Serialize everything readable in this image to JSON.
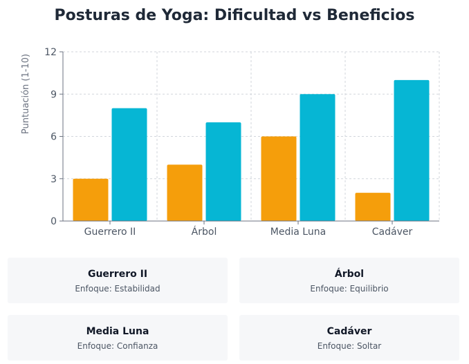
{
  "chart_data": {
    "type": "bar",
    "title": "Posturas de Yoga: Dificultad vs Beneficios",
    "ylabel": "Puntuación (1-10)",
    "xlabel": "",
    "categories": [
      "Guerrero II",
      "Árbol",
      "Media Luna",
      "Cadáver"
    ],
    "series": [
      {
        "color": "#f59e0b",
        "values": [
          3,
          4,
          6,
          2
        ]
      },
      {
        "color": "#06b6d4",
        "values": [
          8,
          7,
          9,
          10
        ]
      }
    ],
    "ylim": [
      0,
      12
    ],
    "yticks": [
      0,
      3,
      6,
      9,
      12
    ],
    "grid": true,
    "legend": "none"
  },
  "cards": [
    {
      "name": "Guerrero II",
      "focus": "Enfoque: Estabilidad"
    },
    {
      "name": "Árbol",
      "focus": "Enfoque: Equilibrio"
    },
    {
      "name": "Media Luna",
      "focus": "Enfoque: Confianza"
    },
    {
      "name": "Cadáver",
      "focus": "Enfoque: Soltar"
    }
  ]
}
